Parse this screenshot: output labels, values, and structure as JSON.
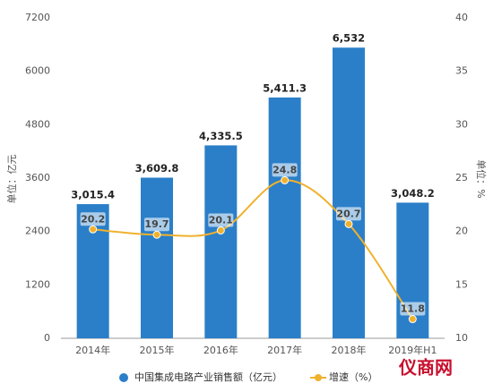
{
  "chart_data": {
    "type": "bar_line",
    "categories": [
      "2014年",
      "2015年",
      "2016年",
      "2017年",
      "2018年",
      "2019年H1"
    ],
    "series": [
      {
        "name": "中国集成电路产业销售额（亿元）",
        "color": "#2b7fc8",
        "type": "bar",
        "values": [
          3015.4,
          3609.8,
          4335.5,
          5411.3,
          6532,
          3048.2
        ],
        "value_labels": [
          "3,015.4",
          "3,609.8",
          "4,335.5",
          "5,411.3",
          "6,532",
          "3,048.2"
        ]
      },
      {
        "name": "增速（%）",
        "color": "#f0b12e",
        "type": "line",
        "axis": "y2",
        "values": [
          20.2,
          19.7,
          20.1,
          24.8,
          20.7,
          11.8
        ]
      }
    ],
    "ylabel": "单位：亿元",
    "y2label": "单位：%",
    "ylim": [
      0,
      7200
    ],
    "yticks": [
      0,
      1200,
      2400,
      3600,
      4800,
      6000,
      7200
    ],
    "y2lim": [
      10,
      40
    ],
    "y2ticks": [
      10,
      15,
      20,
      25,
      30,
      35,
      40
    ],
    "legend": "bottom",
    "watermark": "仪商网"
  }
}
